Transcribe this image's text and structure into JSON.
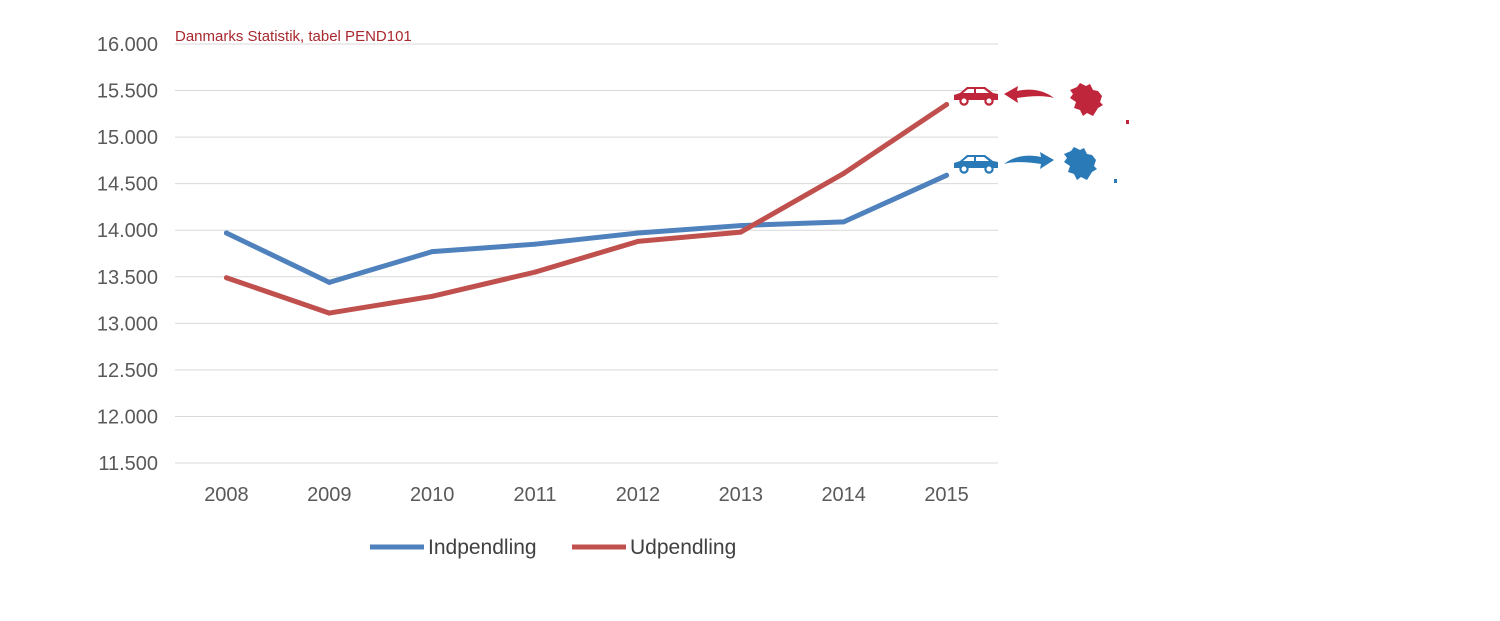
{
  "chart_data": {
    "type": "line",
    "source_note": "Danmarks Statistik, tabel PEND101",
    "categories": [
      "2008",
      "2009",
      "2010",
      "2011",
      "2012",
      "2013",
      "2014",
      "2015"
    ],
    "y_ticks": [
      "11.500",
      "12.000",
      "12.500",
      "13.000",
      "13.500",
      "14.000",
      "14.500",
      "15.000",
      "15.500",
      "16.000"
    ],
    "ylim": [
      11500,
      16000
    ],
    "grid": true,
    "legend_position": "bottom",
    "series": [
      {
        "name": "Indpendling",
        "color": "#4F81BD",
        "values": [
          13970,
          13440,
          13770,
          13850,
          13970,
          14050,
          14090,
          14590
        ]
      },
      {
        "name": "Udpendling",
        "color": "#C0504D",
        "values": [
          13490,
          13110,
          13290,
          13550,
          13880,
          13980,
          14610,
          15350
        ]
      }
    ],
    "icons": {
      "udpendling_icons": [
        "car-icon",
        "arrow-out-icon",
        "municipality-map-icon"
      ],
      "indpendling_icons": [
        "car-icon",
        "arrow-in-icon",
        "municipality-map-icon"
      ],
      "udpendling_color": "#C0263B",
      "indpendling_color": "#2A7AB8"
    }
  }
}
